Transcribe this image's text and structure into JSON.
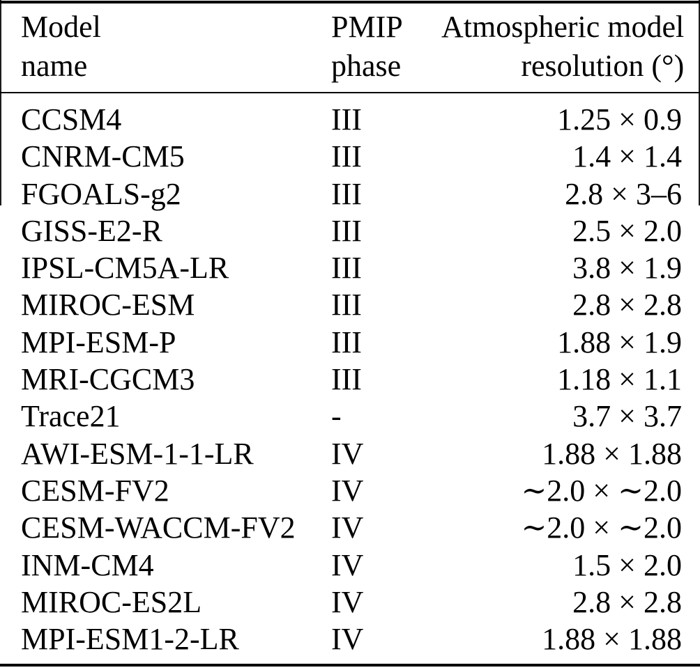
{
  "table": {
    "header": {
      "model_line1": "Model",
      "model_line2": "name",
      "phase_line1": "PMIP",
      "phase_line2": "phase",
      "resolution_line1": "Atmospheric model",
      "resolution_line2": "resolution (°)"
    },
    "rows": [
      {
        "model": "CCSM4",
        "phase": "III",
        "resolution": "1.25 × 0.9"
      },
      {
        "model": "CNRM-CM5",
        "phase": "III",
        "resolution": "1.4 × 1.4"
      },
      {
        "model": "FGOALS-g2",
        "phase": "III",
        "resolution": "2.8 × 3–6"
      },
      {
        "model": "GISS-E2-R",
        "phase": "III",
        "resolution": "2.5 × 2.0"
      },
      {
        "model": "IPSL-CM5A-LR",
        "phase": "III",
        "resolution": "3.8 × 1.9"
      },
      {
        "model": "MIROC-ESM",
        "phase": "III",
        "resolution": "2.8 × 2.8"
      },
      {
        "model": "MPI-ESM-P",
        "phase": "III",
        "resolution": "1.88 × 1.9"
      },
      {
        "model": "MRI-CGCM3",
        "phase": "III",
        "resolution": "1.18 × 1.1"
      },
      {
        "model": "Trace21",
        "phase": "-",
        "resolution": "3.7 × 3.7"
      },
      {
        "model": "AWI-ESM-1-1-LR",
        "phase": "IV",
        "resolution": "1.88 × 1.88"
      },
      {
        "model": "CESM-FV2",
        "phase": "IV",
        "resolution": "∼2.0 × ∼2.0"
      },
      {
        "model": "CESM-WACCM-FV2",
        "phase": "IV",
        "resolution": "∼2.0 × ∼2.0"
      },
      {
        "model": "INM-CM4",
        "phase": "IV",
        "resolution": "1.5 × 2.0"
      },
      {
        "model": "MIROC-ES2L",
        "phase": "IV",
        "resolution": "2.8 × 2.8"
      },
      {
        "model": "MPI-ESM1-2-LR",
        "phase": "IV",
        "resolution": "1.88 × 1.88"
      }
    ],
    "colors": {
      "text": "#000000",
      "background": "#ffffff",
      "rule": "#000000"
    }
  }
}
